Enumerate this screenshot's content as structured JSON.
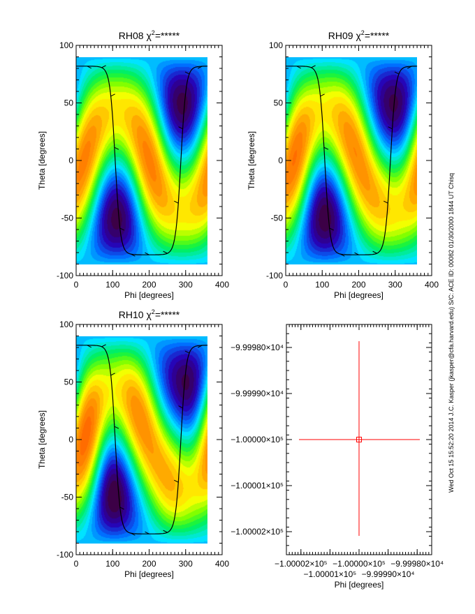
{
  "side_text": "Wed Oct 15 15:52:20 2014   J.C. Kasper (jkasper@cfa.harvard.edu)   S/C: ACE ID: 00082 01/30/2000   1844 UT Chisq",
  "colors": {
    "frame": "#000000",
    "curve": "#000000",
    "marker": "#ff0000"
  },
  "chart_data": [
    {
      "type": "heatmap",
      "title": "RH08 χ²=*****",
      "title_name": "RH08",
      "title_chi": "χ",
      "title_sup": "2",
      "title_val": "=*****",
      "xlabel": "Phi [degrees]",
      "ylabel": "Theta [degrees]",
      "xlim": [
        0,
        400
      ],
      "ylim": [
        -100,
        100
      ],
      "xticks": [
        "0",
        "100",
        "200",
        "300",
        "400"
      ],
      "yticks": [
        "-100",
        "-50",
        "0",
        "50",
        "100"
      ],
      "data_extent": {
        "phi": [
          0,
          360
        ],
        "theta": [
          -90,
          90
        ]
      },
      "colormap": "rainbow",
      "overlay": "black curve"
    },
    {
      "type": "heatmap",
      "title": "RH09 χ²=*****",
      "title_name": "RH09",
      "title_chi": "χ",
      "title_sup": "2",
      "title_val": "=*****",
      "xlabel": "Phi [degrees]",
      "ylabel": "Theta [degrees]",
      "xlim": [
        0,
        400
      ],
      "ylim": [
        -100,
        100
      ],
      "xticks": [
        "0",
        "100",
        "200",
        "300",
        "400"
      ],
      "yticks": [
        "-100",
        "-50",
        "0",
        "50",
        "100"
      ],
      "data_extent": {
        "phi": [
          0,
          360
        ],
        "theta": [
          -90,
          90
        ]
      },
      "colormap": "rainbow",
      "overlay": "black curve"
    },
    {
      "type": "heatmap",
      "title": "RH10 χ²=*****",
      "title_name": "RH10",
      "title_chi": "χ",
      "title_sup": "2",
      "title_val": "=*****",
      "xlabel": "Phi [degrees]",
      "ylabel": "Theta [degrees]",
      "xlim": [
        0,
        400
      ],
      "ylim": [
        -100,
        100
      ],
      "xticks": [
        "0",
        "100",
        "200",
        "300",
        "400"
      ],
      "yticks": [
        "-100",
        "-50",
        "0",
        "50",
        "100"
      ],
      "data_extent": {
        "phi": [
          0,
          360
        ],
        "theta": [
          -90,
          90
        ]
      },
      "colormap": "rainbow",
      "overlay": "black curve"
    },
    {
      "type": "scatter",
      "title": "",
      "xlabel": "Phi [degrees]",
      "ylabel": "Theta [degrees]",
      "xlim": [
        -100002.5,
        -99997.5
      ],
      "ylim": [
        -100002.5,
        -99997.5
      ],
      "xticks": [
        "−1.00002×10⁵",
        "−1.00001×10⁵",
        "−1.00000×10⁵",
        "−9.99990×10⁴",
        "−9.99980×10⁴"
      ],
      "yticks": [
        "−1.00002×10⁵",
        "−1.00001×10⁵",
        "−1.00000×10⁵",
        "−9.99990×10⁴",
        "−9.99980×10⁴"
      ],
      "points": [
        {
          "x": -100000,
          "y": -100000
        }
      ],
      "marker": "square with error cross"
    }
  ]
}
